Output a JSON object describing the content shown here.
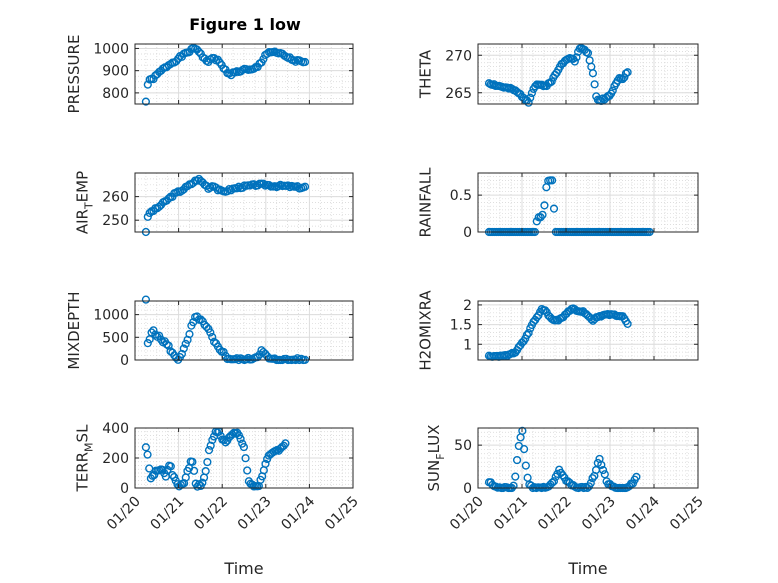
{
  "figure": {
    "title": "Figure 1 low"
  },
  "chart_data": [
    {
      "type": "scatter",
      "ylabel": "PRESSURE",
      "xlabel": "",
      "xlim": [
        0,
        5
      ],
      "ylim": [
        750,
        1020
      ],
      "yticks": [
        800,
        900,
        1000
      ],
      "xticks": [],
      "xticklabels": [],
      "grid": true,
      "minor_grid": true,
      "anchors": [
        [
          0.25,
          760
        ],
        [
          0.27,
          800
        ],
        [
          0.3,
          850
        ],
        [
          0.45,
          870
        ],
        [
          0.6,
          900
        ],
        [
          0.8,
          930
        ],
        [
          1.0,
          955
        ],
        [
          1.15,
          975
        ],
        [
          1.3,
          995
        ],
        [
          1.4,
          1000
        ],
        [
          1.5,
          980
        ],
        [
          1.6,
          950
        ],
        [
          1.7,
          940
        ],
        [
          1.8,
          960
        ],
        [
          1.9,
          945
        ],
        [
          2.0,
          920
        ],
        [
          2.1,
          895
        ],
        [
          2.2,
          885
        ],
        [
          2.35,
          895
        ],
        [
          2.5,
          905
        ],
        [
          2.65,
          900
        ],
        [
          2.8,
          915
        ],
        [
          2.9,
          940
        ],
        [
          3.0,
          975
        ],
        [
          3.1,
          985
        ],
        [
          3.2,
          980
        ],
        [
          3.35,
          975
        ],
        [
          3.5,
          960
        ],
        [
          3.65,
          945
        ],
        [
          3.8,
          940
        ],
        [
          3.9,
          935
        ]
      ],
      "spread": 6,
      "seed": 1
    },
    {
      "type": "scatter",
      "ylabel": "THETA",
      "xlabel": "",
      "xlim": [
        0,
        5
      ],
      "ylim": [
        263.5,
        271.5
      ],
      "yticks": [
        265,
        270
      ],
      "xticks": [],
      "xticklabels": [],
      "grid": true,
      "minor_grid": true,
      "anchors": [
        [
          0.25,
          266.3
        ],
        [
          0.4,
          266
        ],
        [
          0.6,
          265.7
        ],
        [
          0.8,
          265.4
        ],
        [
          0.95,
          264.8
        ],
        [
          1.05,
          264.3
        ],
        [
          1.15,
          263.8
        ],
        [
          1.25,
          265.5
        ],
        [
          1.35,
          266.2
        ],
        [
          1.5,
          265.8
        ],
        [
          1.6,
          266.2
        ],
        [
          1.7,
          266.8
        ],
        [
          1.8,
          267.8
        ],
        [
          1.9,
          268.8
        ],
        [
          2.0,
          269.5
        ],
        [
          2.1,
          269.8
        ],
        [
          2.2,
          269.2
        ],
        [
          2.3,
          270.8
        ],
        [
          2.4,
          270.9
        ],
        [
          2.5,
          270.2
        ],
        [
          2.55,
          269.2
        ],
        [
          2.6,
          268
        ],
        [
          2.65,
          266
        ],
        [
          2.7,
          264
        ],
        [
          2.8,
          264
        ],
        [
          2.95,
          264.5
        ],
        [
          3.05,
          265
        ],
        [
          3.1,
          266
        ],
        [
          3.2,
          267
        ],
        [
          3.3,
          266.8
        ],
        [
          3.4,
          267.8
        ]
      ],
      "spread": 0.15,
      "seed": 2
    },
    {
      "type": "scatter",
      "ylabel": "AIR_TEMP",
      "xlabel": "",
      "xlim": [
        0,
        5
      ],
      "ylim": [
        245,
        270
      ],
      "yticks": [
        250,
        260
      ],
      "xticks": [],
      "xticklabels": [],
      "grid": true,
      "minor_grid": true,
      "anchors": [
        [
          0.25,
          245
        ],
        [
          0.28,
          250
        ],
        [
          0.32,
          253
        ],
        [
          0.5,
          255
        ],
        [
          0.7,
          258
        ],
        [
          0.9,
          261
        ],
        [
          1.1,
          263
        ],
        [
          1.3,
          265.5
        ],
        [
          1.45,
          267.5
        ],
        [
          1.55,
          266
        ],
        [
          1.7,
          263.5
        ],
        [
          1.8,
          265
        ],
        [
          1.9,
          263
        ],
        [
          2.0,
          262
        ],
        [
          2.2,
          263
        ],
        [
          2.4,
          264
        ],
        [
          2.6,
          264.5
        ],
        [
          2.8,
          265
        ],
        [
          3.0,
          265
        ],
        [
          3.2,
          264.5
        ],
        [
          3.4,
          264.5
        ],
        [
          3.6,
          264.2
        ],
        [
          3.8,
          263.8
        ],
        [
          3.9,
          264
        ]
      ],
      "spread": 0.5,
      "seed": 3
    },
    {
      "type": "scatter",
      "ylabel": "RAINFALL",
      "xlabel": "",
      "xlim": [
        0,
        5
      ],
      "ylim": [
        0,
        0.8
      ],
      "yticks": [
        0,
        0.5
      ],
      "xticks": [],
      "xticklabels": [],
      "grid": true,
      "minor_grid": true,
      "anchors": [
        [
          0.25,
          0
        ],
        [
          1.1,
          0
        ],
        [
          1.3,
          0
        ],
        [
          1.35,
          0.2
        ],
        [
          1.45,
          0.2
        ],
        [
          1.5,
          0.3
        ],
        [
          1.55,
          0.6
        ],
        [
          1.6,
          0.7
        ],
        [
          1.7,
          0.7
        ],
        [
          1.75,
          0
        ],
        [
          2.5,
          0
        ],
        [
          3.2,
          0
        ],
        [
          3.9,
          0
        ]
      ],
      "spread": 0,
      "seed": 4
    },
    {
      "type": "scatter",
      "ylabel": "MIXDEPTH",
      "xlabel": "",
      "xlim": [
        0,
        5
      ],
      "ylim": [
        0,
        1300
      ],
      "yticks": [
        0,
        500,
        1000
      ],
      "xticks": [],
      "xticklabels": [],
      "grid": true,
      "minor_grid": true,
      "anchors": [
        [
          0.25,
          1300
        ],
        [
          0.28,
          350
        ],
        [
          0.35,
          450
        ],
        [
          0.4,
          700
        ],
        [
          0.5,
          550
        ],
        [
          0.6,
          450
        ],
        [
          0.7,
          380
        ],
        [
          0.8,
          250
        ],
        [
          0.9,
          80
        ],
        [
          1.0,
          20
        ],
        [
          1.1,
          200
        ],
        [
          1.2,
          400
        ],
        [
          1.3,
          750
        ],
        [
          1.4,
          950
        ],
        [
          1.5,
          900
        ],
        [
          1.6,
          750
        ],
        [
          1.7,
          650
        ],
        [
          1.8,
          400
        ],
        [
          1.9,
          300
        ],
        [
          2.0,
          200
        ],
        [
          2.1,
          50
        ],
        [
          2.3,
          10
        ],
        [
          2.6,
          10
        ],
        [
          2.8,
          80
        ],
        [
          2.9,
          200
        ],
        [
          3.0,
          100
        ],
        [
          3.1,
          10
        ],
        [
          3.5,
          0
        ],
        [
          3.9,
          0
        ]
      ],
      "spread": 40,
      "seed": 5
    },
    {
      "type": "scatter",
      "ylabel": "H2OMIXRA",
      "xlabel": "",
      "xlim": [
        0,
        5
      ],
      "ylim": [
        0.6,
        2.1
      ],
      "yticks": [
        1,
        1.5,
        2
      ],
      "xticks": [],
      "xticklabels": [],
      "grid": true,
      "minor_grid": true,
      "anchors": [
        [
          0.25,
          0.7
        ],
        [
          0.5,
          0.7
        ],
        [
          0.7,
          0.72
        ],
        [
          0.85,
          0.8
        ],
        [
          0.95,
          0.95
        ],
        [
          1.05,
          1.1
        ],
        [
          1.15,
          1.3
        ],
        [
          1.25,
          1.55
        ],
        [
          1.35,
          1.7
        ],
        [
          1.45,
          1.9
        ],
        [
          1.55,
          1.85
        ],
        [
          1.65,
          1.65
        ],
        [
          1.8,
          1.6
        ],
        [
          1.95,
          1.7
        ],
        [
          2.05,
          1.85
        ],
        [
          2.15,
          1.9
        ],
        [
          2.3,
          1.85
        ],
        [
          2.45,
          1.8
        ],
        [
          2.6,
          1.6
        ],
        [
          2.7,
          1.7
        ],
        [
          2.9,
          1.75
        ],
        [
          3.1,
          1.75
        ],
        [
          3.3,
          1.7
        ],
        [
          3.4,
          1.5
        ]
      ],
      "spread": 0.02,
      "seed": 6
    },
    {
      "type": "scatter",
      "ylabel": "TERR_MSL",
      "xlabel": "Time",
      "xlim": [
        0,
        5
      ],
      "ylim": [
        0,
        400
      ],
      "yticks": [
        0,
        200,
        400
      ],
      "xticks": [
        0,
        1,
        2,
        3,
        4,
        5
      ],
      "xticklabels": [
        "01/20",
        "01/21",
        "01/22",
        "01/23",
        "01/24",
        "01/25"
      ],
      "grid": true,
      "minor_grid": true,
      "anchors": [
        [
          0.25,
          270
        ],
        [
          0.3,
          220
        ],
        [
          0.35,
          60
        ],
        [
          0.45,
          100
        ],
        [
          0.6,
          130
        ],
        [
          0.7,
          80
        ],
        [
          0.8,
          170
        ],
        [
          0.85,
          100
        ],
        [
          0.95,
          40
        ],
        [
          1.05,
          10
        ],
        [
          1.1,
          20
        ],
        [
          1.2,
          100
        ],
        [
          1.3,
          200
        ],
        [
          1.35,
          120
        ],
        [
          1.4,
          20
        ],
        [
          1.5,
          10
        ],
        [
          1.6,
          80
        ],
        [
          1.7,
          250
        ],
        [
          1.8,
          350
        ],
        [
          1.9,
          380
        ],
        [
          2.0,
          330
        ],
        [
          2.1,
          300
        ],
        [
          2.2,
          360
        ],
        [
          2.35,
          380
        ],
        [
          2.45,
          300
        ],
        [
          2.5,
          260
        ],
        [
          2.55,
          180
        ],
        [
          2.6,
          50
        ],
        [
          2.7,
          10
        ],
        [
          2.85,
          20
        ],
        [
          2.95,
          120
        ],
        [
          3.05,
          200
        ],
        [
          3.2,
          240
        ],
        [
          3.35,
          270
        ],
        [
          3.45,
          300
        ]
      ],
      "spread": 12,
      "seed": 7
    },
    {
      "type": "scatter",
      "ylabel": "SUN_FLUX",
      "xlabel": "Time",
      "xlim": [
        0,
        5
      ],
      "ylim": [
        0,
        70
      ],
      "yticks": [
        0,
        50
      ],
      "xticks": [
        0,
        1,
        2,
        3,
        4,
        5
      ],
      "xticklabels": [
        "01/20",
        "01/21",
        "01/22",
        "01/23",
        "01/24",
        "01/25"
      ],
      "grid": true,
      "minor_grid": true,
      "anchors": [
        [
          0.25,
          7
        ],
        [
          0.35,
          3
        ],
        [
          0.45,
          0
        ],
        [
          0.8,
          0
        ],
        [
          0.85,
          15
        ],
        [
          0.9,
          40
        ],
        [
          0.95,
          55
        ],
        [
          1.0,
          70
        ],
        [
          1.05,
          45
        ],
        [
          1.1,
          20
        ],
        [
          1.15,
          5
        ],
        [
          1.25,
          0
        ],
        [
          1.6,
          0
        ],
        [
          1.75,
          10
        ],
        [
          1.85,
          22
        ],
        [
          1.95,
          12
        ],
        [
          2.1,
          5
        ],
        [
          2.25,
          0
        ],
        [
          2.5,
          0
        ],
        [
          2.65,
          15
        ],
        [
          2.75,
          35
        ],
        [
          2.85,
          20
        ],
        [
          2.95,
          5
        ],
        [
          3.1,
          0
        ],
        [
          3.4,
          0
        ],
        [
          3.5,
          5
        ],
        [
          3.6,
          12
        ]
      ],
      "spread": 1.5,
      "seed": 8
    }
  ]
}
